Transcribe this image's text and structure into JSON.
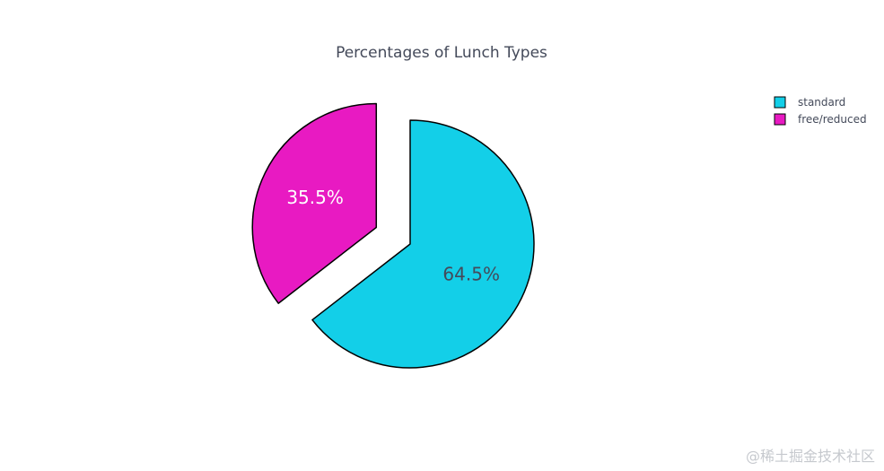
{
  "chart_data": {
    "type": "pie",
    "title": "Percentages of Lunch Types",
    "slices": [
      {
        "label": "standard",
        "value": 64.5,
        "display": "64.5%",
        "color": "#13cfe8",
        "text_color": "#444a5a",
        "pulled": false
      },
      {
        "label": "free/reduced",
        "value": 35.5,
        "display": "35.5%",
        "color": "#e81ac2",
        "text_color": "#ffffff",
        "pulled": true
      }
    ],
    "legend": {
      "placement": "top-right",
      "entries": [
        "standard",
        "free/reduced"
      ]
    },
    "slice_outline_color": "#000000"
  },
  "watermark": "@稀土掘金技术社区"
}
